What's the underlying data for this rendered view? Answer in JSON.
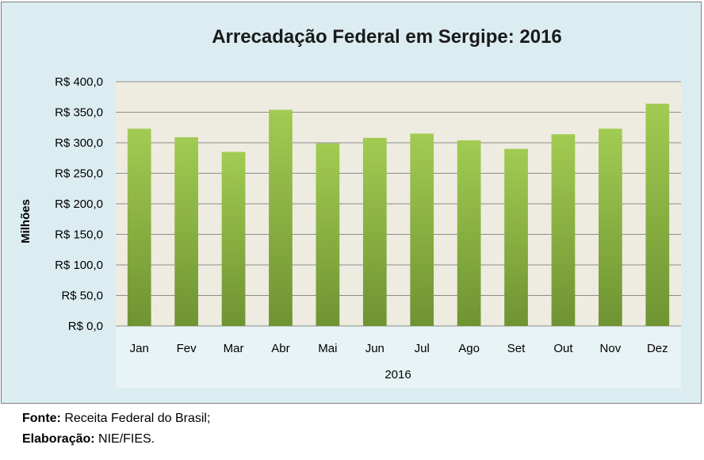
{
  "chart_data": {
    "type": "bar",
    "title": "Arrecadação Federal em Sergipe: 2016",
    "ylabel": "Milhões",
    "xlabel": "2016",
    "categories": [
      "Jan",
      "Fev",
      "Mar",
      "Abr",
      "Mai",
      "Jun",
      "Jul",
      "Ago",
      "Set",
      "Out",
      "Nov",
      "Dez"
    ],
    "values": [
      323,
      309,
      285,
      354,
      299,
      308,
      315,
      304,
      290,
      314,
      323,
      364
    ],
    "ylim": [
      0,
      400
    ],
    "yticks": [
      "R$ 0,0",
      "R$ 50,0",
      "R$ 100,0",
      "R$ 150,0",
      "R$ 200,0",
      "R$ 250,0",
      "R$ 300,0",
      "R$ 350,0",
      "R$ 400,0"
    ],
    "grid": true,
    "legend": "none"
  },
  "colors": {
    "bar_top": "#a2cb52",
    "bar_bottom": "#6f9332",
    "plot_bg": "#eeece1",
    "frame_bg": "#dcedf2",
    "grid": "#8c8c8c"
  },
  "footer": {
    "source_label": "Fonte:",
    "source_text": " Receita Federal do Brasil;",
    "credit_label": "Elaboração:",
    "credit_text": "  NIE/FIES."
  }
}
